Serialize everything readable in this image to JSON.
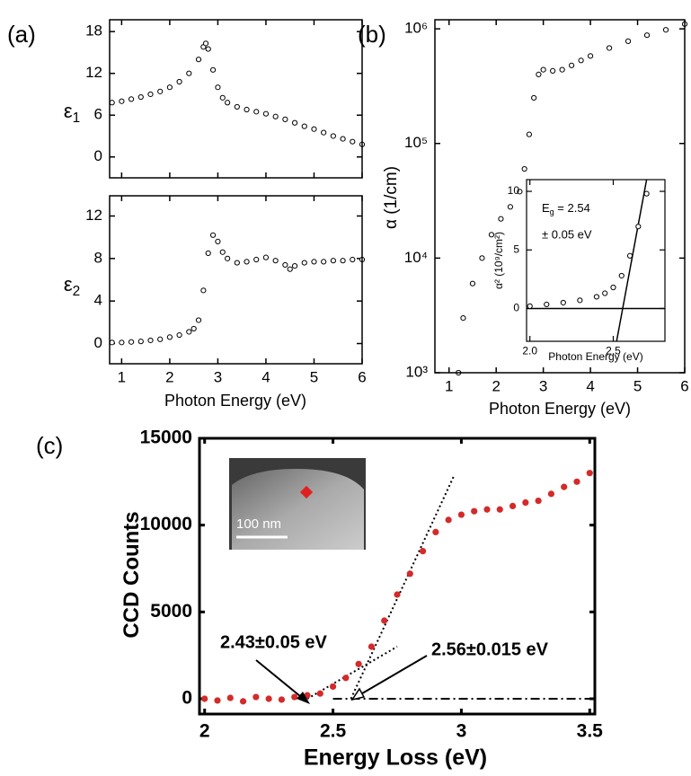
{
  "chart_data": [
    {
      "type": "scatter",
      "panel_label": "(a)",
      "ylabel": "ε",
      "ylabel_sub": "1",
      "marker": "open",
      "color": "#000000",
      "xlim": [
        0.75,
        6
      ],
      "xticks": [
        1,
        2,
        3,
        4,
        5,
        6
      ],
      "xticklabels": false,
      "ylim": [
        -3,
        19.7
      ],
      "yticks": [
        0,
        6,
        12,
        18
      ],
      "x": [
        0.8,
        1.0,
        1.2,
        1.4,
        1.6,
        1.8,
        2.0,
        2.2,
        2.4,
        2.6,
        2.7,
        2.75,
        2.8,
        2.9,
        3.0,
        3.1,
        3.2,
        3.4,
        3.6,
        3.8,
        4.0,
        4.2,
        4.4,
        4.6,
        4.8,
        5.0,
        5.2,
        5.4,
        5.6,
        5.8,
        6.0
      ],
      "values": [
        7.8,
        8.0,
        8.3,
        8.6,
        9.0,
        9.4,
        10.0,
        10.8,
        12.0,
        14.0,
        15.8,
        16.3,
        15.5,
        12.5,
        10.0,
        8.5,
        7.8,
        7.2,
        6.8,
        6.5,
        6.2,
        5.8,
        5.4,
        4.9,
        4.4,
        4.0,
        3.5,
        3.0,
        2.6,
        2.2,
        1.8
      ]
    },
    {
      "type": "scatter",
      "xlabel": "Photon Energy (eV)",
      "ylabel": "ε",
      "ylabel_sub": "2",
      "marker": "open",
      "color": "#000000",
      "xlim": [
        0.75,
        6
      ],
      "xticks": [
        1,
        2,
        3,
        4,
        5,
        6
      ],
      "ylim": [
        -1.9,
        13.9
      ],
      "yticks": [
        0,
        4,
        8,
        12
      ],
      "x": [
        0.8,
        1.0,
        1.2,
        1.4,
        1.6,
        1.8,
        2.0,
        2.2,
        2.4,
        2.5,
        2.6,
        2.7,
        2.8,
        2.9,
        3.0,
        3.1,
        3.2,
        3.4,
        3.6,
        3.8,
        4.0,
        4.2,
        4.4,
        4.5,
        4.6,
        4.8,
        5.0,
        5.2,
        5.4,
        5.6,
        5.8,
        6.0
      ],
      "values": [
        0.1,
        0.1,
        0.15,
        0.2,
        0.3,
        0.4,
        0.6,
        0.8,
        1.1,
        1.4,
        2.2,
        5.0,
        8.5,
        10.2,
        9.6,
        8.6,
        8.0,
        7.6,
        7.7,
        7.9,
        8.1,
        7.8,
        7.4,
        7.0,
        7.3,
        7.6,
        7.7,
        7.7,
        7.8,
        7.8,
        7.9,
        7.9
      ]
    },
    {
      "type": "scatter",
      "panel_label": "(b)",
      "xlabel": "Photon Energy (eV)",
      "ylabel": "α (1/cm)",
      "yscale": "log",
      "marker": "open",
      "color": "#000000",
      "xlim": [
        0.7,
        6
      ],
      "xticks": [
        1,
        2,
        3,
        4,
        5,
        6
      ],
      "ylim": [
        1000,
        1200000
      ],
      "yticks": [
        {
          "value": 1000,
          "label": "10³"
        },
        {
          "value": 10000,
          "label": "10⁴"
        },
        {
          "value": 100000,
          "label": "10⁵"
        },
        {
          "value": 1000000,
          "label": "10⁶"
        }
      ],
      "x": [
        1.2,
        1.3,
        1.5,
        1.7,
        1.9,
        2.1,
        2.3,
        2.5,
        2.6,
        2.7,
        2.8,
        2.9,
        3.0,
        3.2,
        3.4,
        3.6,
        3.8,
        4.0,
        4.4,
        4.8,
        5.2,
        5.6,
        6.0
      ],
      "values": [
        1000,
        3000,
        6000,
        10000,
        16000,
        22000,
        28000,
        38000,
        60000,
        120000,
        250000,
        400000,
        440000,
        430000,
        440000,
        480000,
        530000,
        580000,
        680000,
        780000,
        880000,
        980000,
        1100000
      ]
    },
    {
      "type": "scatter",
      "xlabel": "Photon Energy (eV)",
      "ylabel": "α² (10⁹/cm²)",
      "marker": "open",
      "color": "#000000",
      "annotations": [
        "E",
        "g",
        " = 2.54",
        "± 0.05 eV"
      ],
      "xlim": [
        1.98,
        2.81
      ],
      "xticks": [
        {
          "value": 2,
          "label": "2.0"
        },
        2.5
      ],
      "ylim": [
        -2.8,
        11
      ],
      "yticks": [
        0,
        5,
        10
      ],
      "x": [
        2.0,
        2.1,
        2.2,
        2.3,
        2.4,
        2.45,
        2.5,
        2.55,
        2.6,
        2.65,
        2.7
      ],
      "values": [
        0.2,
        0.35,
        0.5,
        0.7,
        1.0,
        1.3,
        1.8,
        2.8,
        4.5,
        7.0,
        9.8
      ],
      "fits": [
        {
          "style": "solid",
          "x": [
            2.52,
            2.7
          ],
          "values": [
            -2.8,
            11
          ]
        },
        {
          "style": "solid",
          "x": [
            1.98,
            2.81
          ],
          "values": [
            0,
            0
          ]
        }
      ]
    },
    {
      "type": "scatter",
      "panel_label": "(c)",
      "xlabel": "Energy Loss (eV)",
      "ylabel": "CCD Counts",
      "marker": "filled",
      "color": "#d42a2a",
      "annotations": [
        "2.43±0.05 eV",
        "2.56±0.015 eV",
        "100 nm"
      ],
      "xlim": [
        1.98,
        3.52
      ],
      "xticks": [
        2,
        2.5,
        3,
        3.5
      ],
      "ylim": [
        -880,
        15000
      ],
      "yticks": [
        0,
        5000,
        10000,
        15000
      ],
      "x": [
        2.0,
        2.05,
        2.1,
        2.15,
        2.2,
        2.25,
        2.3,
        2.35,
        2.4,
        2.45,
        2.5,
        2.55,
        2.6,
        2.65,
        2.7,
        2.75,
        2.8,
        2.85,
        2.9,
        2.95,
        3.0,
        3.05,
        3.1,
        3.15,
        3.2,
        3.25,
        3.3,
        3.35,
        3.4,
        3.45,
        3.5
      ],
      "values": [
        0,
        -100,
        50,
        -150,
        100,
        0,
        -50,
        100,
        200,
        300,
        700,
        1200,
        2000,
        3000,
        4500,
        6000,
        7200,
        8500,
        9600,
        10300,
        10600,
        10800,
        10900,
        10900,
        11100,
        11300,
        11400,
        11800,
        12200,
        12500,
        13000
      ],
      "fits": [
        {
          "style": "dotted",
          "x": [
            2.4,
            2.75
          ],
          "values": [
            0,
            3000
          ]
        },
        {
          "style": "dotted",
          "x": [
            2.57,
            2.97
          ],
          "values": [
            0,
            12800
          ]
        },
        {
          "style": "dashdot",
          "x": [
            2.5,
            3.5
          ],
          "values": [
            0,
            0
          ]
        }
      ]
    }
  ]
}
